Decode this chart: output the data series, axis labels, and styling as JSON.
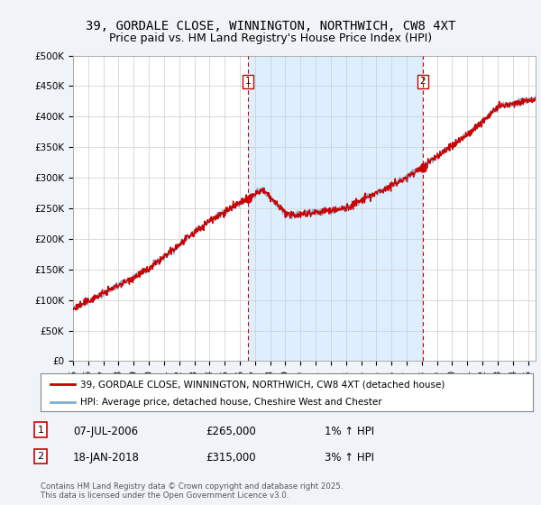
{
  "title_line1": "39, GORDALE CLOSE, WINNINGTON, NORTHWICH, CW8 4XT",
  "title_line2": "Price paid vs. HM Land Registry's House Price Index (HPI)",
  "ylabel_ticks": [
    "£0",
    "£50K",
    "£100K",
    "£150K",
    "£200K",
    "£250K",
    "£300K",
    "£350K",
    "£400K",
    "£450K",
    "£500K"
  ],
  "ytick_values": [
    0,
    50000,
    100000,
    150000,
    200000,
    250000,
    300000,
    350000,
    400000,
    450000,
    500000
  ],
  "ylim": [
    0,
    500000
  ],
  "xlim_start": 1995,
  "xlim_end": 2025.5,
  "hpi_color": "#7eadd4",
  "price_color": "#cc0000",
  "marker1_date": 2006.52,
  "marker1_value": 265000,
  "marker2_date": 2018.05,
  "marker2_value": 315000,
  "marker_color": "#cc0000",
  "shade_color": "#ddeeff",
  "legend_label1": "39, GORDALE CLOSE, WINNINGTON, NORTHWICH, CW8 4XT (detached house)",
  "legend_label2": "HPI: Average price, detached house, Cheshire West and Chester",
  "annotation1_num": "1",
  "annotation1_date": "07-JUL-2006",
  "annotation1_price": "£265,000",
  "annotation1_hpi": "1% ↑ HPI",
  "annotation2_num": "2",
  "annotation2_date": "18-JAN-2018",
  "annotation2_price": "£315,000",
  "annotation2_hpi": "3% ↑ HPI",
  "footer": "Contains HM Land Registry data © Crown copyright and database right 2025.\nThis data is licensed under the Open Government Licence v3.0.",
  "bg_color": "#f0f4f8",
  "plot_bg_color": "#ffffff",
  "grid_color": "#cccccc",
  "title_fontsize": 10,
  "subtitle_fontsize": 9
}
